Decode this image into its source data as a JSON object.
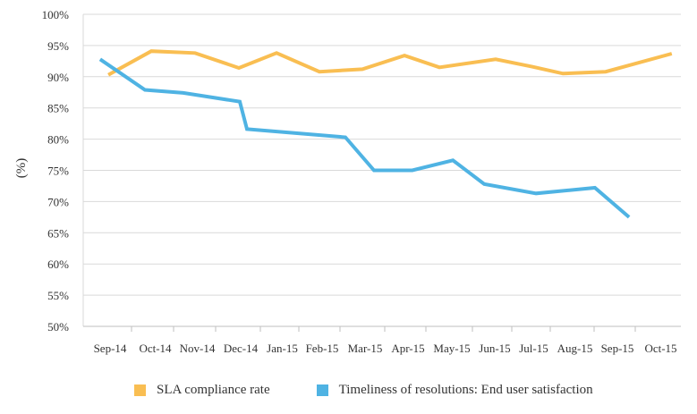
{
  "chart_data": {
    "type": "line",
    "title": "",
    "xlabel": "",
    "ylabel": "(%)",
    "ylim": [
      50,
      100
    ],
    "yticks": [
      50,
      55,
      60,
      65,
      70,
      75,
      80,
      85,
      90,
      95,
      100
    ],
    "ytick_labels": [
      "50%",
      "55%",
      "60%",
      "65%",
      "70%",
      "75%",
      "80%",
      "85%",
      "90%",
      "95%",
      "100%"
    ],
    "grid": true,
    "legend_position": "bottom",
    "categories": [
      "Sep-14",
      "Oct-14",
      "Nov-14",
      "Dec-14",
      "Jan-15",
      "Feb-15",
      "Mar-15",
      "Apr-15",
      "May-15",
      "Jun-15",
      "Jul-15",
      "Aug-15",
      "Sep-15",
      "Oct-15"
    ],
    "x_unit": "month index from Sep-14 (fractional = position within month)",
    "series": [
      {
        "name": "SLA compliance rate",
        "color": "#F9BE52",
        "x": [
          0.52,
          1.47,
          2.51,
          3.52,
          4.42,
          5.5,
          6.5,
          7.48,
          8.29,
          9.59,
          10.53,
          11.29,
          12.28,
          13.8
        ],
        "values": [
          90.3,
          94.1,
          93.8,
          91.4,
          93.8,
          90.8,
          91.2,
          93.4,
          91.5,
          92.8,
          91.6,
          90.5,
          90.8,
          93.7
        ]
      },
      {
        "name": "Timeliness of resolutions: End user satisfaction",
        "color": "#4FB3E3",
        "x": [
          0.35,
          1.32,
          2.23,
          3.54,
          3.7,
          6.12,
          6.76,
          7.67,
          8.58,
          9.3,
          10.63,
          12.02,
          12.85
        ],
        "values": [
          92.8,
          87.9,
          87.4,
          86.0,
          81.6,
          80.3,
          75.0,
          75.0,
          76.6,
          72.8,
          71.3,
          72.2,
          67.5
        ]
      }
    ]
  },
  "colors": {
    "grid": "#D9D9D9",
    "axis": "#BFBFBF",
    "text": "#333333"
  }
}
